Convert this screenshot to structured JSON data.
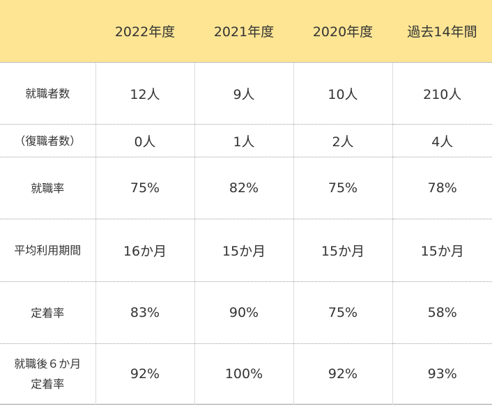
{
  "table": {
    "header": [
      "",
      "2022年度",
      "2021年度",
      "2020年度",
      "過去14年間"
    ],
    "rows": [
      {
        "label": "就職者数",
        "values": [
          "12人",
          "9人",
          "10人",
          "210人"
        ]
      },
      {
        "label": "（復職者数）",
        "values": [
          "0人",
          "1人",
          "2人",
          "4人"
        ]
      },
      {
        "label": "就職率",
        "values": [
          "75%",
          "82%",
          "75%",
          "78%"
        ]
      },
      {
        "label": "平均利用期間",
        "values": [
          "16か月",
          "15か月",
          "15か月",
          "15か月"
        ]
      },
      {
        "label": "定着率",
        "values": [
          "83%",
          "90%",
          "75%",
          "58%"
        ]
      },
      {
        "label_line1": "就職後６か月",
        "label_line2": "定着率",
        "values": [
          "92%",
          "100%",
          "92%",
          "93%"
        ]
      }
    ]
  },
  "colors": {
    "header_background": "#fde594",
    "text": "#333333",
    "grid_line": "#dcdcdc"
  }
}
